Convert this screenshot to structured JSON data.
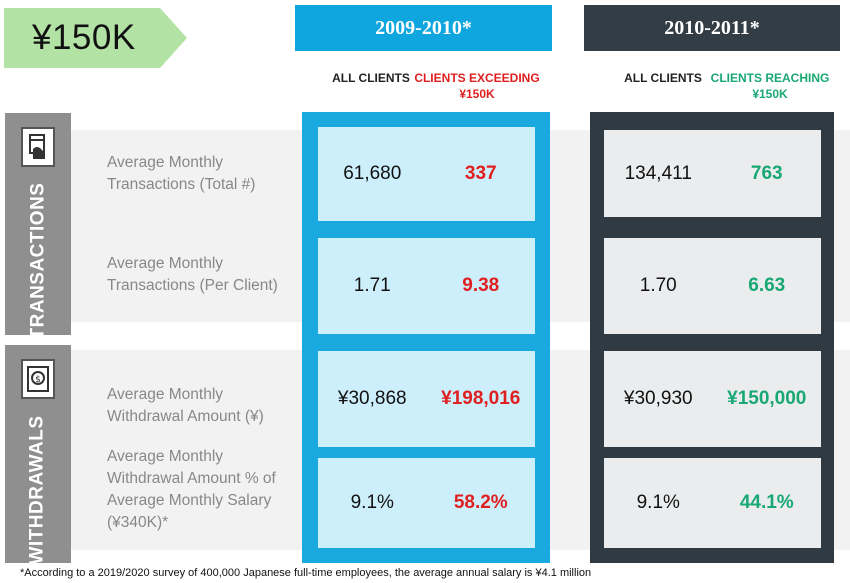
{
  "threshold": {
    "label": "¥150K"
  },
  "periods": [
    {
      "name": "2009-2010*",
      "col_all": "ALL CLIENTS",
      "col_high_line1": "CLIENTS EXCEEDING",
      "col_high_line2": "¥150K",
      "color": "#0fa6e0",
      "highlight_color": "#e02020"
    },
    {
      "name": "2010-2011*",
      "col_all": "ALL CLIENTS",
      "col_high_line1": "CLIENTS REACHING",
      "col_high_line2": "¥150K",
      "color": "#323d45",
      "highlight_color": "#19a874"
    }
  ],
  "sections": {
    "transactions": {
      "label": "TRANSACTIONS",
      "icon": "card-hand-icon"
    },
    "withdrawals": {
      "label": "WITHDRAWALS",
      "icon": "atm-cash-icon"
    }
  },
  "rows": [
    {
      "label_lines": [
        "Average Monthly",
        "Transactions (Total #)"
      ],
      "p1_all": "61,680",
      "p1_high": "337",
      "p2_all": "134,411",
      "p2_high": "763"
    },
    {
      "label_lines": [
        "Average Monthly",
        "Transactions (Per Client)"
      ],
      "p1_all": "1.71",
      "p1_high": "9.38",
      "p2_all": "1.70",
      "p2_high": "6.63"
    },
    {
      "label_lines": [
        "Average Monthly",
        "Withdrawal Amount (¥)"
      ],
      "p1_all": "¥30,868",
      "p1_high": "¥198,016",
      "p2_all": "¥30,930",
      "p2_high": "¥150,000"
    },
    {
      "label_lines": [
        "Average Monthly",
        "Withdrawal Amount % of",
        "Average Monthly Salary",
        "(¥340K)*"
      ],
      "p1_all": "9.1%",
      "p1_high": "58.2%",
      "p2_all": "9.1%",
      "p2_high": "44.1%"
    }
  ],
  "footnote": "*According to a 2019/2020 survey of 400,000 Japanese full-time employees, the average annual salary is ¥4.1 million"
}
